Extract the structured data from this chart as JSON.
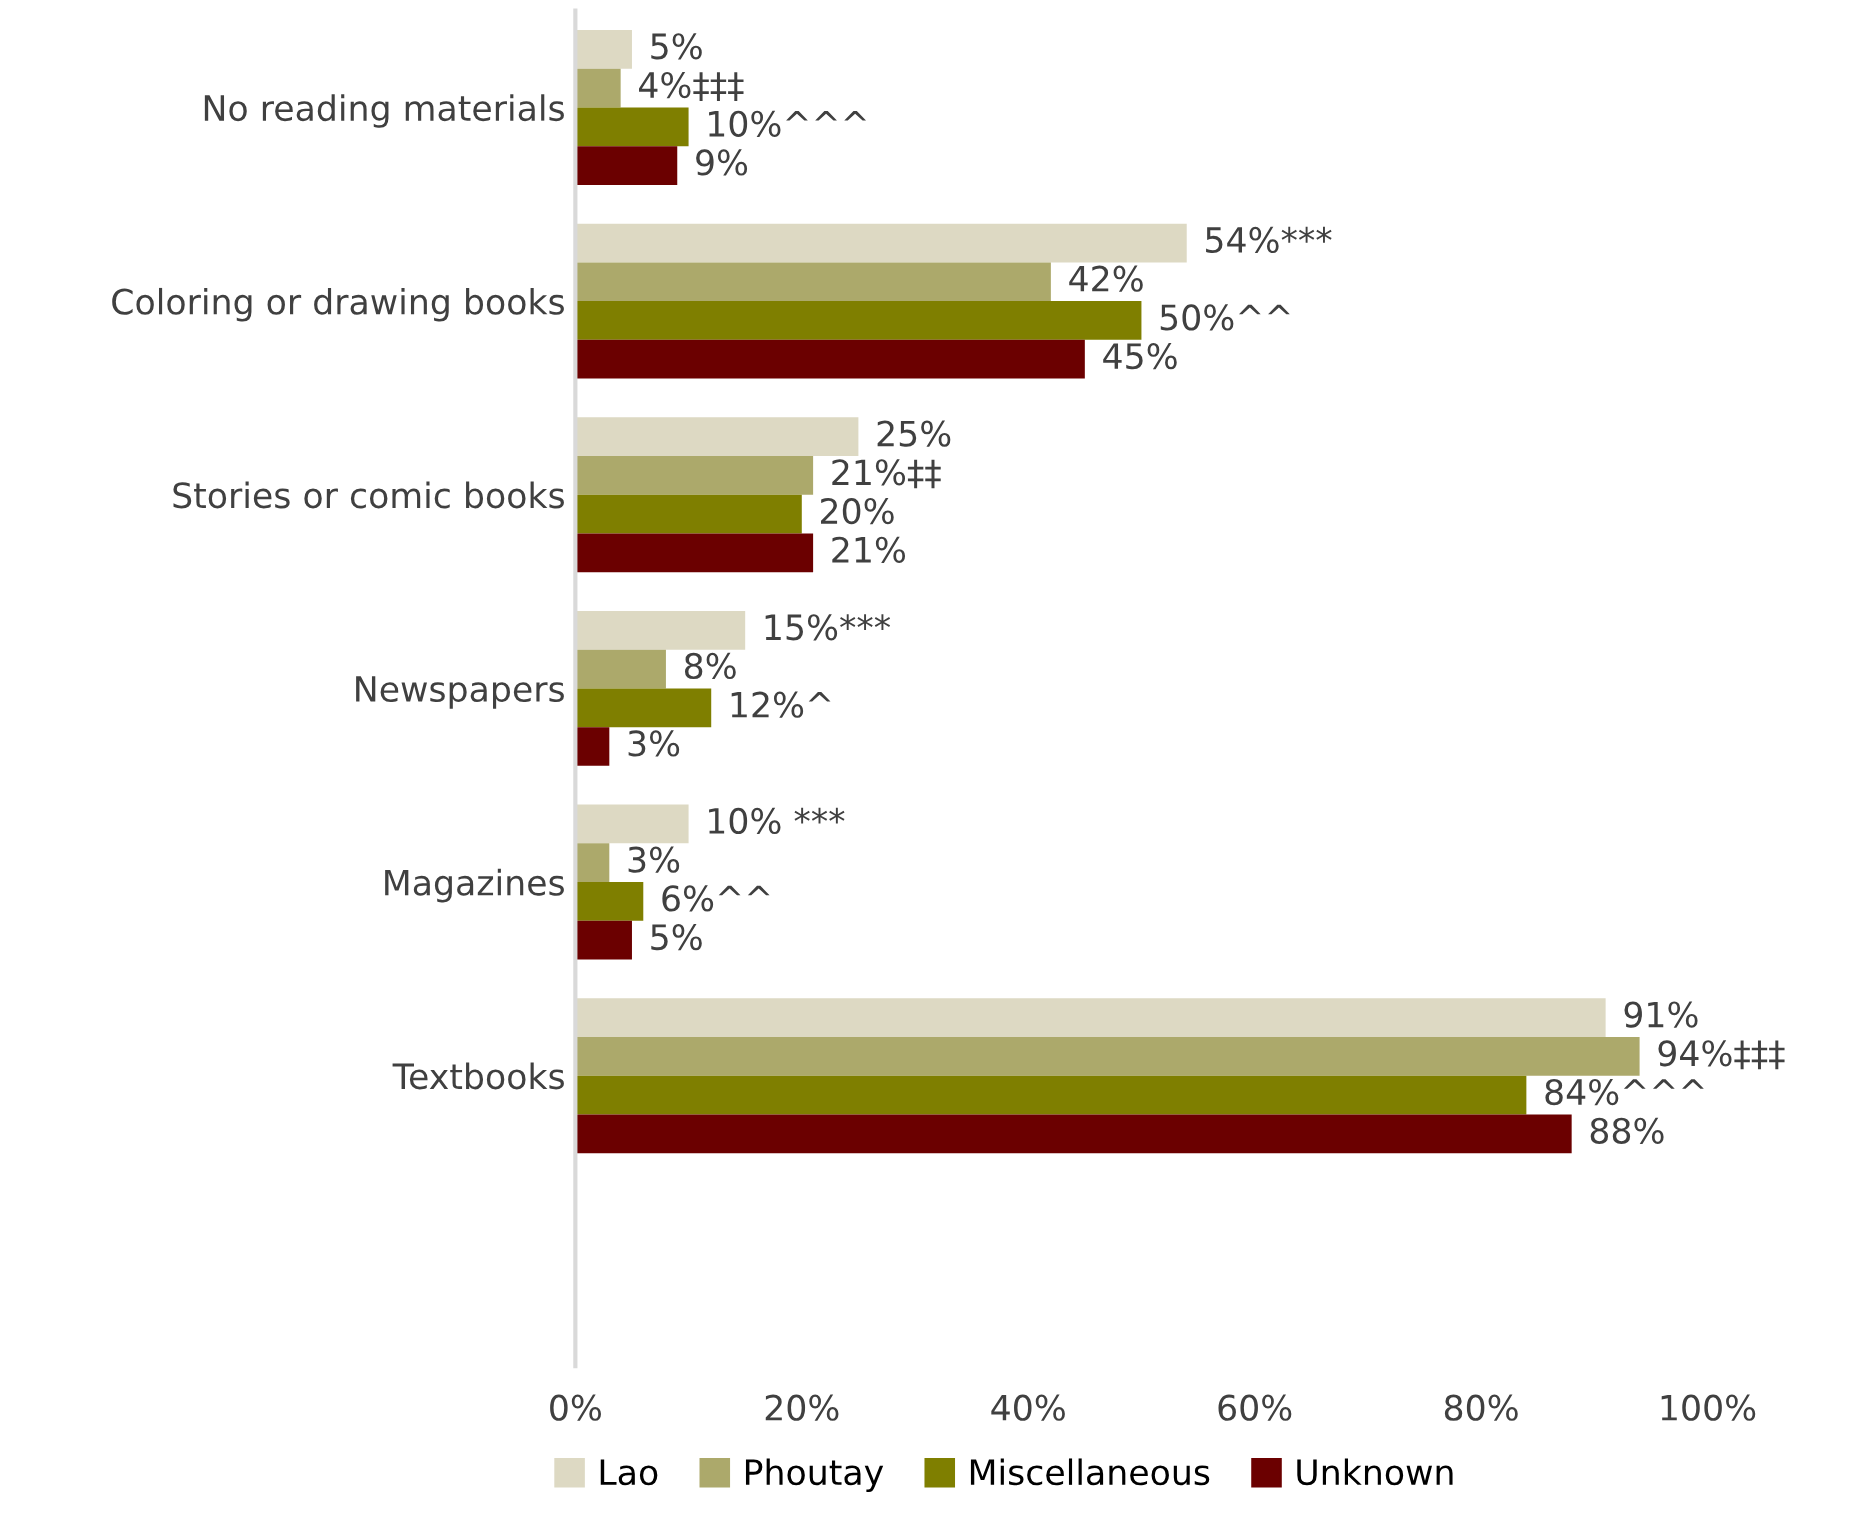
{
  "chart_data": {
    "type": "bar",
    "orientation": "horizontal",
    "categories": [
      "No reading materials",
      "Coloring or drawing books",
      "Stories or comic books",
      "Newspapers",
      "Magazines",
      "Textbooks",
      null
    ],
    "series": [
      {
        "name": "Lao",
        "color": "#ddd9c3",
        "values": [
          5,
          54,
          25,
          15,
          10,
          91,
          null
        ],
        "value_labels": [
          "5%",
          "54%***",
          "25%",
          "15%***",
          "10% ***",
          "91%",
          null
        ]
      },
      {
        "name": "Phoutay",
        "color": "#aca96b",
        "values": [
          4,
          42,
          21,
          8,
          3,
          94,
          null
        ],
        "value_labels": [
          "4%‡‡‡",
          "42%",
          "21%‡‡",
          "8%",
          "3%",
          "94%‡‡‡",
          null
        ]
      },
      {
        "name": "Miscellaneous",
        "color": "#7f7f00",
        "values": [
          10,
          50,
          20,
          12,
          6,
          84,
          null
        ],
        "value_labels": [
          "10%^^^",
          "50%^^",
          "20%",
          "12%^",
          "6%^^",
          "84%^^^",
          null
        ]
      },
      {
        "name": "Unknown",
        "color": "#6b0000",
        "values": [
          9,
          45,
          21,
          3,
          5,
          88,
          null
        ],
        "value_labels": [
          "9%",
          "45%",
          "21%",
          "3%",
          "5%",
          "88%",
          null
        ]
      }
    ],
    "xlim": [
      0,
      100
    ],
    "xticks": [
      {
        "value": 0,
        "label": "0%"
      },
      {
        "value": 20,
        "label": "20%"
      },
      {
        "value": 40,
        "label": "40%"
      },
      {
        "value": 60,
        "label": "60%"
      },
      {
        "value": 80,
        "label": "80%"
      },
      {
        "value": 100,
        "label": "100%"
      }
    ],
    "grid": false,
    "legend": "bottom"
  }
}
